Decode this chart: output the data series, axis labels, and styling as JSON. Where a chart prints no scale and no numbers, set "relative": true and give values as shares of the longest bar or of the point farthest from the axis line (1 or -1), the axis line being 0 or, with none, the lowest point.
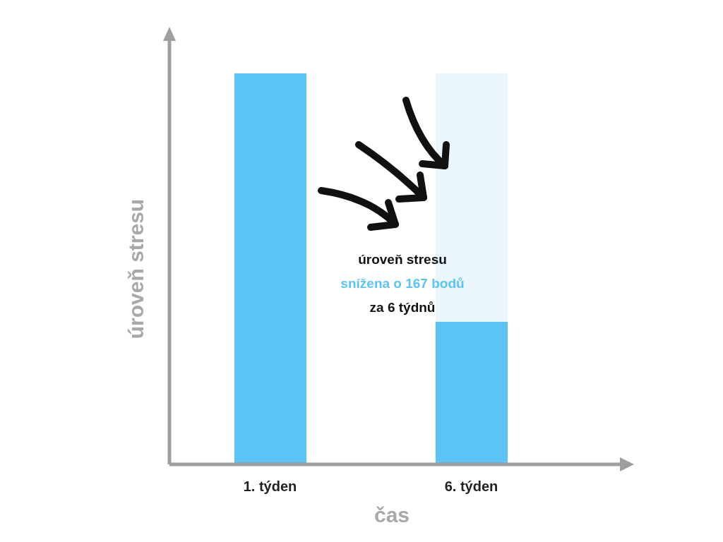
{
  "chart_data": {
    "type": "bar",
    "stacked": true,
    "relative": true,
    "xlabel": "čas",
    "ylabel": "úroveň stresu",
    "categories": [
      "1. týden",
      "6. týden"
    ],
    "series": [
      {
        "color": "#5bc3f5",
        "values": [
          1,
          0.365
        ]
      },
      {
        "color": "#eaf6fc",
        "values": [
          null,
          0.635
        ]
      }
    ],
    "annotations": [
      "úroveň stresu",
      "snížena o 167 bodů",
      "za 6 týdnů"
    ],
    "legend": false,
    "grid": false
  }
}
